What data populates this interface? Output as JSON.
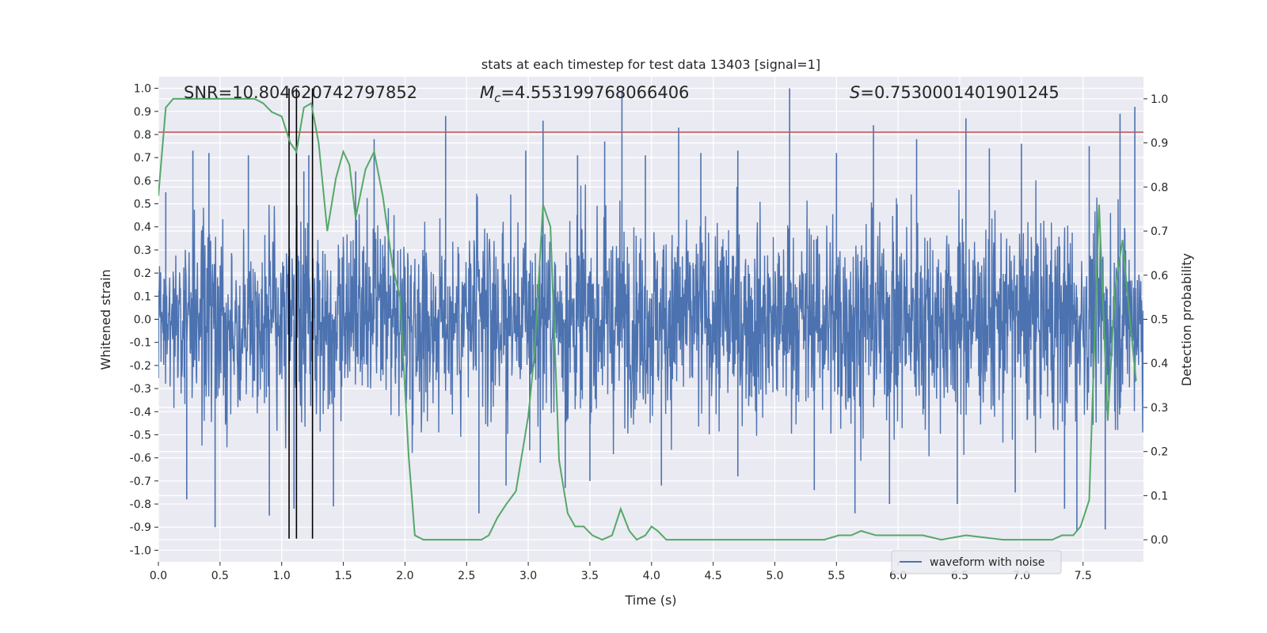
{
  "chart_data": {
    "type": "line",
    "title": "stats at each timestep for test data 13403 [signal=1]",
    "xlabel": "Time (s)",
    "ylabel_left": "Whitened strain",
    "ylabel_right": "Detection probability",
    "xlim": [
      0,
      7.99
    ],
    "ylim_left": [
      -1.05,
      1.05
    ],
    "ylim_right": [
      -0.05,
      1.05
    ],
    "x_ticks": [
      "0.0",
      "0.5",
      "1.0",
      "1.5",
      "2.0",
      "2.5",
      "3.0",
      "3.5",
      "4.0",
      "4.5",
      "5.0",
      "5.5",
      "6.0",
      "6.5",
      "7.0",
      "7.5"
    ],
    "y_ticks_left": [
      "1.0",
      "0.9",
      "0.8",
      "0.7",
      "0.6",
      "0.5",
      "0.4",
      "0.3",
      "0.2",
      "0.1",
      "0.0",
      "-0.1",
      "-0.2",
      "-0.3",
      "-0.4",
      "-0.5",
      "-0.6",
      "-0.7",
      "-0.8",
      "-0.9",
      "-1.0"
    ],
    "y_ticks_right": [
      "1.0",
      "0.9",
      "0.8",
      "0.7",
      "0.6",
      "0.5",
      "0.4",
      "0.3",
      "0.2",
      "0.1",
      "0.0"
    ],
    "grid": true,
    "legend_position": "bottom-right",
    "threshold": {
      "axis": "left",
      "value": 0.81,
      "color": "#c44e52"
    },
    "vertical_lines": {
      "x": [
        1.06,
        1.12,
        1.25
      ],
      "color": "#000000"
    },
    "annotations": {
      "snr": "SNR=10.804620742797852",
      "mc_symbol": "M",
      "mc_sub": "c",
      "mc_value": "=4.553199768066406",
      "s_symbol": "S",
      "s_value": "=0.7530001401901245"
    },
    "series": [
      {
        "name": "waveform with noise",
        "axis": "left",
        "color": "#4c72b0",
        "legend": true,
        "envelope_upper": [
          [
            0,
            0.48
          ],
          [
            0.5,
            0.52
          ],
          [
            1.0,
            0.46
          ],
          [
            1.5,
            0.5
          ],
          [
            2.0,
            0.5
          ],
          [
            2.5,
            0.55
          ],
          [
            3.0,
            0.5
          ],
          [
            3.5,
            0.56
          ],
          [
            4.0,
            0.52
          ],
          [
            4.5,
            0.55
          ],
          [
            5.0,
            0.54
          ],
          [
            5.5,
            0.56
          ],
          [
            6.0,
            0.55
          ],
          [
            6.5,
            0.56
          ],
          [
            7.0,
            0.58
          ],
          [
            7.5,
            0.56
          ],
          [
            7.99,
            0.52
          ]
        ],
        "envelope_lower": [
          [
            0,
            -0.45
          ],
          [
            0.5,
            -0.55
          ],
          [
            1.0,
            -0.55
          ],
          [
            1.5,
            -0.52
          ],
          [
            2.0,
            -0.55
          ],
          [
            2.5,
            -0.56
          ],
          [
            3.0,
            -0.6
          ],
          [
            3.5,
            -0.56
          ],
          [
            4.0,
            -0.55
          ],
          [
            4.5,
            -0.55
          ],
          [
            5.0,
            -0.55
          ],
          [
            5.5,
            -0.58
          ],
          [
            6.0,
            -0.6
          ],
          [
            6.5,
            -0.56
          ],
          [
            7.0,
            -0.55
          ],
          [
            7.5,
            -0.55
          ],
          [
            7.99,
            -0.5
          ]
        ],
        "peaks": [
          [
            0.06,
            0.55
          ],
          [
            0.28,
            0.73
          ],
          [
            0.41,
            0.72
          ],
          [
            0.73,
            0.71
          ],
          [
            1.18,
            0.64
          ],
          [
            1.22,
            0.71
          ],
          [
            1.6,
            0.64
          ],
          [
            1.75,
            0.78
          ],
          [
            2.33,
            0.88
          ],
          [
            2.98,
            0.73
          ],
          [
            3.12,
            0.86
          ],
          [
            3.4,
            0.71
          ],
          [
            3.62,
            0.77
          ],
          [
            3.76,
            0.99
          ],
          [
            3.95,
            0.71
          ],
          [
            4.22,
            0.83
          ],
          [
            4.4,
            0.72
          ],
          [
            4.7,
            0.73
          ],
          [
            5.12,
            1.0
          ],
          [
            5.5,
            0.72
          ],
          [
            5.8,
            0.84
          ],
          [
            6.15,
            0.78
          ],
          [
            6.55,
            0.87
          ],
          [
            6.74,
            0.74
          ],
          [
            7.0,
            0.76
          ],
          [
            7.55,
            0.75
          ],
          [
            7.8,
            0.89
          ],
          [
            7.92,
            0.92
          ]
        ],
        "troughs": [
          [
            0.23,
            -0.78
          ],
          [
            0.46,
            -0.9
          ],
          [
            0.9,
            -0.85
          ],
          [
            1.1,
            -0.82
          ],
          [
            1.42,
            -0.81
          ],
          [
            2.6,
            -0.84
          ],
          [
            2.82,
            -0.72
          ],
          [
            3.3,
            -0.73
          ],
          [
            3.5,
            -0.7
          ],
          [
            4.08,
            -0.72
          ],
          [
            4.7,
            -0.68
          ],
          [
            5.32,
            -0.74
          ],
          [
            5.65,
            -0.84
          ],
          [
            5.93,
            -0.8
          ],
          [
            6.48,
            -0.8
          ],
          [
            6.95,
            -0.75
          ],
          [
            7.35,
            -0.82
          ],
          [
            7.45,
            -0.92
          ],
          [
            7.68,
            -0.91
          ]
        ]
      },
      {
        "name": "detection probability",
        "axis": "right",
        "color": "#55a868",
        "legend": false,
        "x": [
          0,
          0.06,
          0.12,
          0.2,
          0.4,
          0.6,
          0.78,
          0.85,
          0.92,
          1.0,
          1.07,
          1.12,
          1.18,
          1.24,
          1.3,
          1.37,
          1.44,
          1.5,
          1.55,
          1.6,
          1.68,
          1.75,
          1.82,
          1.9,
          1.96,
          2.03,
          2.08,
          2.15,
          2.3,
          2.5,
          2.62,
          2.68,
          2.75,
          2.82,
          2.9,
          3.0,
          3.05,
          3.12,
          3.18,
          3.25,
          3.32,
          3.38,
          3.45,
          3.52,
          3.6,
          3.68,
          3.75,
          3.82,
          3.88,
          3.95,
          4.0,
          4.05,
          4.12,
          4.3,
          4.55,
          4.8,
          5.0,
          5.3,
          5.4,
          5.52,
          5.62,
          5.7,
          5.82,
          5.95,
          6.08,
          6.2,
          6.35,
          6.55,
          6.85,
          7.05,
          7.25,
          7.33,
          7.42,
          7.48,
          7.55,
          7.63,
          7.7,
          7.76,
          7.82,
          7.88,
          7.93
        ],
        "y": [
          0.78,
          0.98,
          1.0,
          1.0,
          1.0,
          1.0,
          1.0,
          0.99,
          0.97,
          0.96,
          0.9,
          0.88,
          0.98,
          0.99,
          0.9,
          0.7,
          0.82,
          0.88,
          0.85,
          0.73,
          0.84,
          0.88,
          0.78,
          0.62,
          0.55,
          0.19,
          0.01,
          0.0,
          0.0,
          0.0,
          0.0,
          0.01,
          0.05,
          0.08,
          0.11,
          0.28,
          0.42,
          0.76,
          0.71,
          0.18,
          0.06,
          0.03,
          0.03,
          0.01,
          0.0,
          0.01,
          0.07,
          0.02,
          0.0,
          0.01,
          0.03,
          0.02,
          0.0,
          0.0,
          0.0,
          0.0,
          0.0,
          0.0,
          0.0,
          0.01,
          0.01,
          0.02,
          0.01,
          0.01,
          0.01,
          0.01,
          0.0,
          0.01,
          0.0,
          0.0,
          0.0,
          0.01,
          0.01,
          0.03,
          0.09,
          0.76,
          0.27,
          0.57,
          0.68,
          0.5,
          0.36
        ]
      }
    ]
  }
}
